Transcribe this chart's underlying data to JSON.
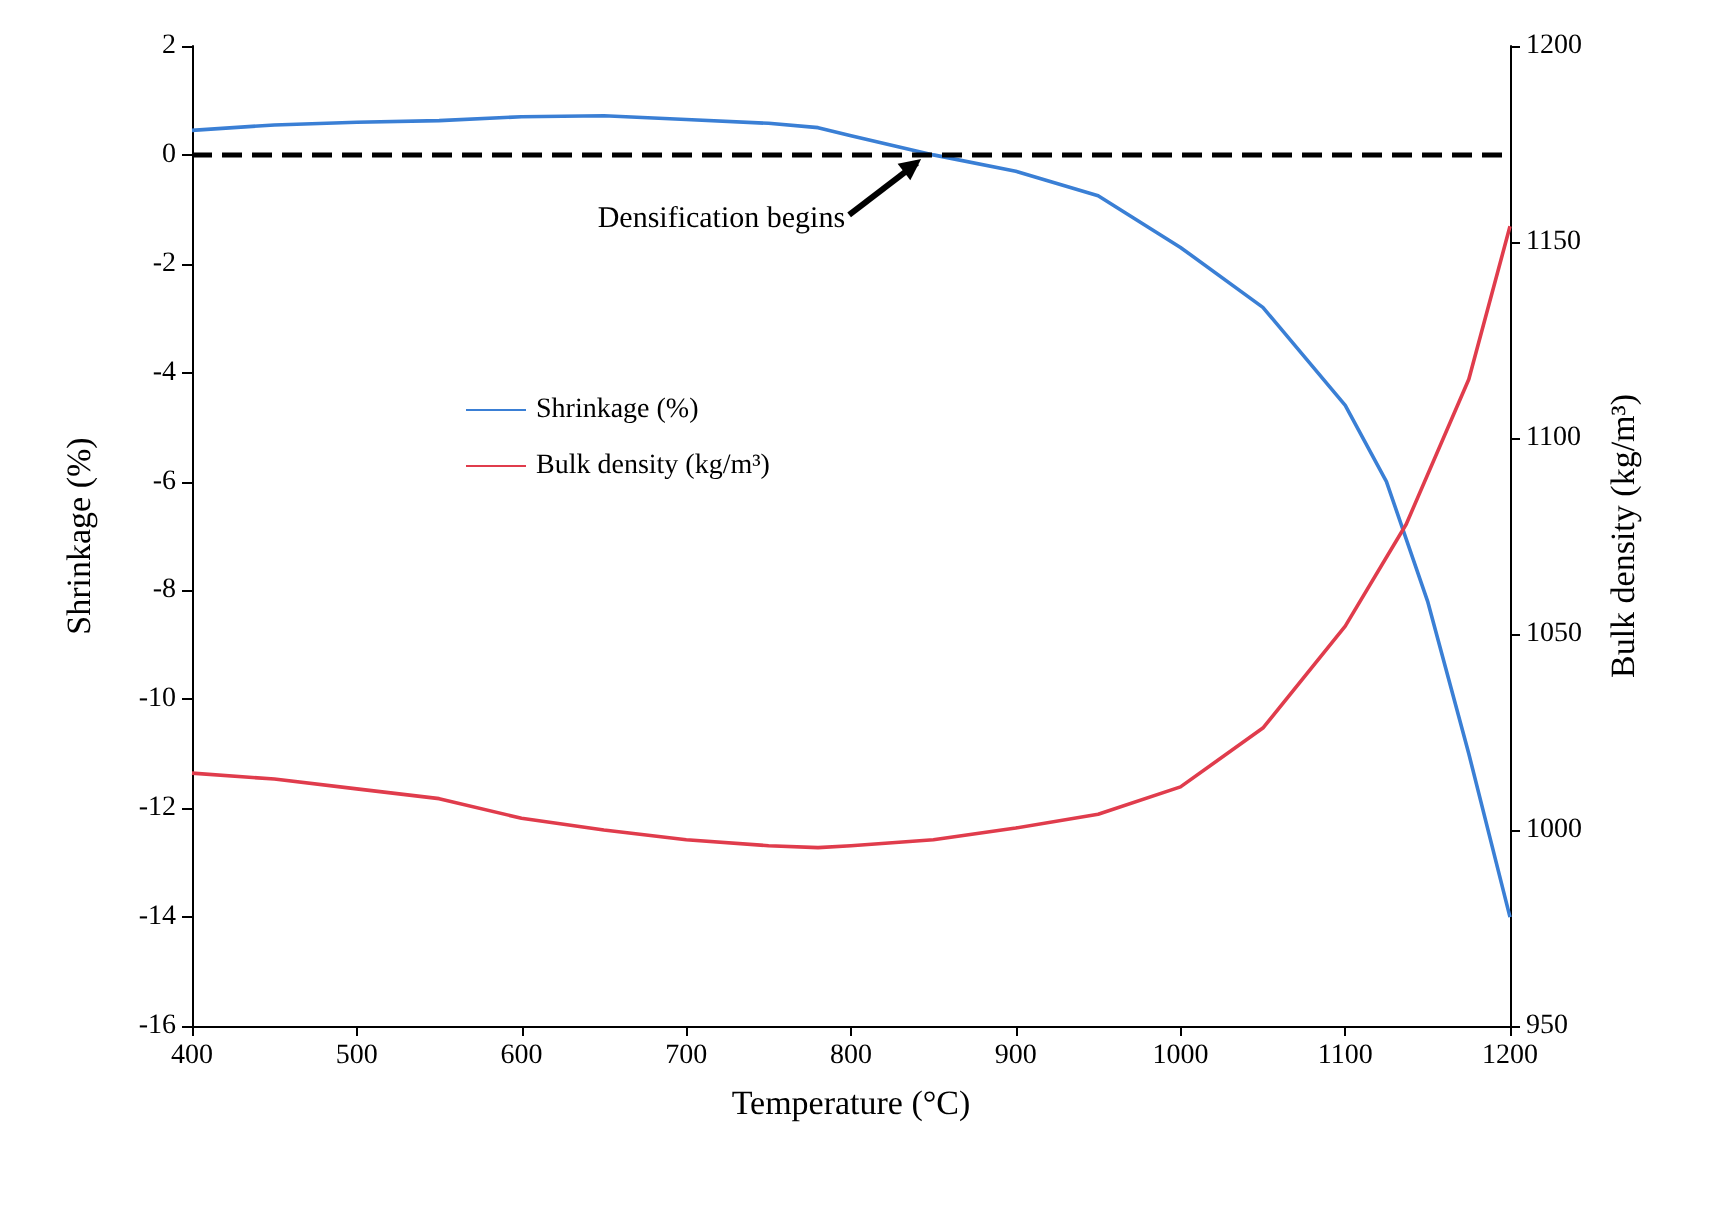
{
  "chart_data": {
    "type": "line",
    "xlabel": "Temperature (°C)",
    "ylabel": "Shrinkage (%)",
    "y2label": "Bulk density (kg/m³)",
    "xlim": [
      400,
      1200
    ],
    "xticks": [
      400,
      500,
      600,
      700,
      800,
      900,
      1000,
      1100,
      1200
    ],
    "ylim": [
      -16,
      2
    ],
    "yticks": [
      -16,
      -14,
      -12,
      -10,
      -8,
      -6,
      -4,
      -2,
      0,
      2
    ],
    "y2lim": [
      950,
      1200
    ],
    "y2ticks": [
      950,
      1000,
      1050,
      1100,
      1150,
      1200
    ],
    "grid": false,
    "legend": "left",
    "marker": "none",
    "line_style": "solid",
    "ref_lines": [
      {
        "axis": "y",
        "value": 0,
        "color": "#000000",
        "line_style": "dashed"
      }
    ],
    "annotations": [
      {
        "text": "Densification begins",
        "x": 845,
        "y": 0
      }
    ],
    "series": [
      {
        "name": "Shrinkage (%)",
        "color": "#3a7fd5",
        "x": [
          400,
          450,
          500,
          550,
          600,
          650,
          700,
          750,
          780,
          800,
          850,
          900,
          950,
          1000,
          1050,
          1100,
          1125,
          1150,
          1175,
          1200
        ],
        "values": [
          0.45,
          0.55,
          0.6,
          0.63,
          0.7,
          0.72,
          0.65,
          0.58,
          0.5,
          0.35,
          0,
          -0.3,
          -0.75,
          -1.7,
          -2.8,
          -4.6,
          -6,
          -8.2,
          -11,
          -14
        ]
      },
      {
        "name": "Bulk density (kg/m³)",
        "color": "#e03c4c",
        "axis": "y2",
        "x": [
          400,
          450,
          500,
          550,
          600,
          650,
          700,
          750,
          780,
          800,
          850,
          900,
          950,
          1000,
          1050,
          1100,
          1137,
          1175,
          1200
        ],
        "values": [
          1014.5,
          1013,
          1010.5,
          1008,
          1003,
          1000,
          997.5,
          996,
          995.5,
          996,
          997.5,
          1000.5,
          1004,
          1011,
          1026,
          1052,
          1078,
          1115,
          1154
        ]
      }
    ]
  }
}
